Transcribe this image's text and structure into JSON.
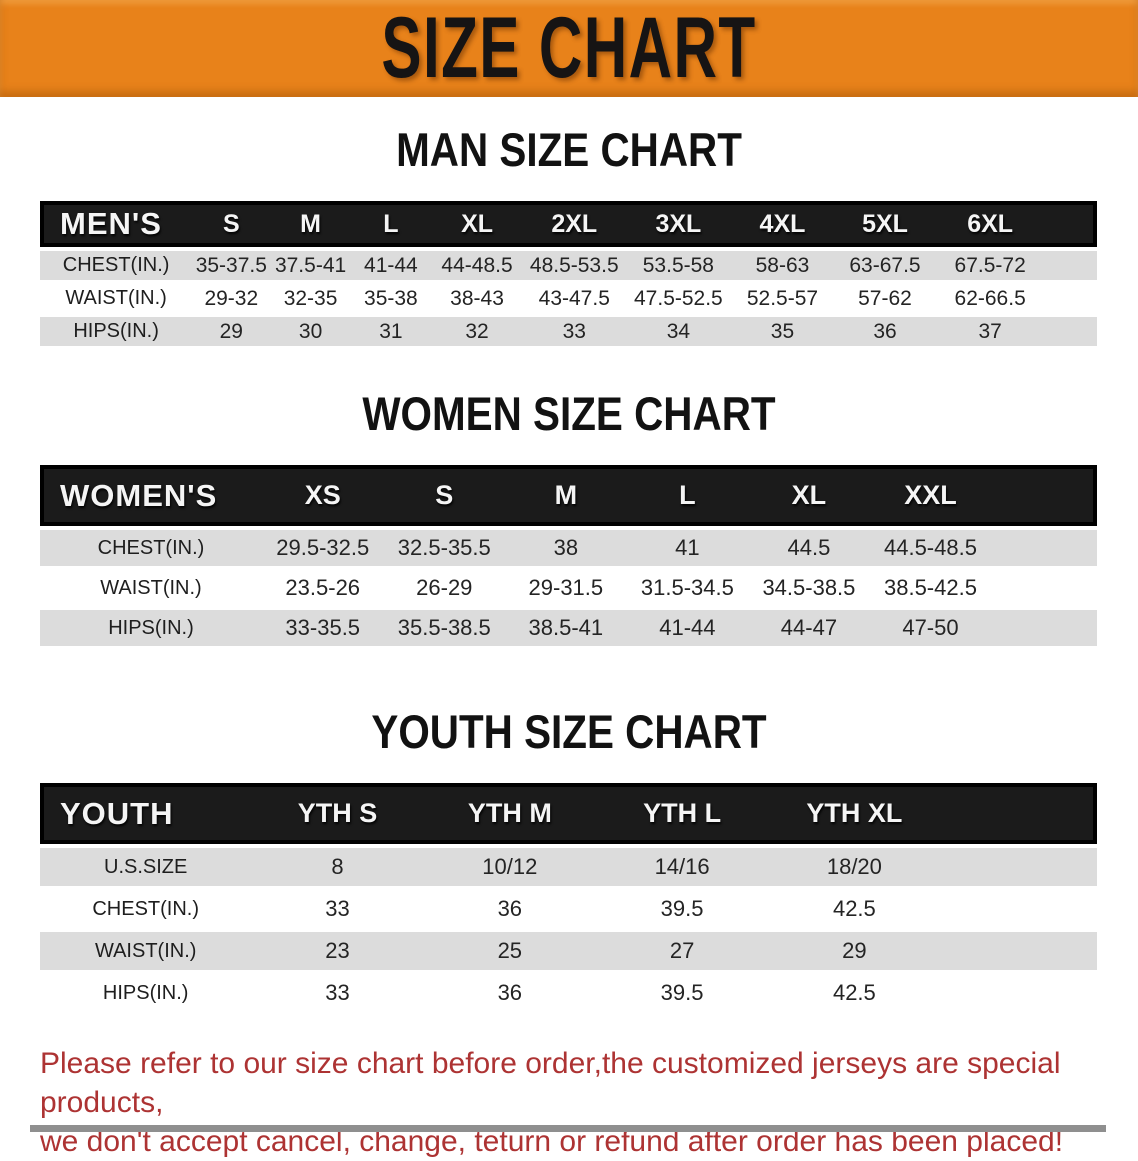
{
  "banner": {
    "title": "SIZE CHART",
    "bg_color": "#E8821A"
  },
  "colors": {
    "banner_bg": "#E8821A",
    "header_bar": "#1B1B1B",
    "row_stripe": "#DCDCDC",
    "disclaimer_text": "#AD3333"
  },
  "sections": [
    {
      "heading": "MAN SIZE CHART",
      "table": {
        "header": [
          "MEN'S",
          "S",
          "M",
          "L",
          "XL",
          "2XL",
          "3XL",
          "4XL",
          "5XL",
          "6XL"
        ],
        "rows": [
          {
            "label": "CHEST(IN.)",
            "values": [
              "35-37.5",
              "37.5-41",
              "41-44",
              "44-48.5",
              "48.5-53.5",
              "53.5-58",
              "58-63",
              "63-67.5",
              "67.5-72"
            ]
          },
          {
            "label": "WAIST(IN.)",
            "values": [
              "29-32",
              "32-35",
              "35-38",
              "38-43",
              "43-47.5",
              "47.5-52.5",
              "52.5-57",
              "57-62",
              "62-66.5"
            ]
          },
          {
            "label": "HIPS(IN.)",
            "values": [
              "29",
              "30",
              "31",
              "32",
              "33",
              "34",
              "35",
              "36",
              "37"
            ]
          }
        ]
      }
    },
    {
      "heading": "WOMEN SIZE CHART",
      "table": {
        "header": [
          "WOMEN'S",
          "XS",
          "S",
          "M",
          "L",
          "XL",
          "XXL"
        ],
        "rows": [
          {
            "label": "CHEST(IN.)",
            "values": [
              "29.5-32.5",
              "32.5-35.5",
              "38",
              "41",
              "44.5",
              "44.5-48.5"
            ]
          },
          {
            "label": "WAIST(IN.)",
            "values": [
              "23.5-26",
              "26-29",
              "29-31.5",
              "31.5-34.5",
              "34.5-38.5",
              "38.5-42.5"
            ]
          },
          {
            "label": "HIPS(IN.)",
            "values": [
              "33-35.5",
              "35.5-38.5",
              "38.5-41",
              "41-44",
              "44-47",
              "47-50"
            ]
          }
        ]
      }
    },
    {
      "heading": "YOUTH SIZE CHART",
      "table": {
        "header": [
          "YOUTH",
          "YTH S",
          "YTH M",
          "YTH L",
          "YTH XL"
        ],
        "rows": [
          {
            "label": "U.S.SIZE",
            "values": [
              "8",
              "10/12",
              "14/16",
              "18/20"
            ]
          },
          {
            "label": "CHEST(IN.)",
            "values": [
              "33",
              "36",
              "39.5",
              "42.5"
            ]
          },
          {
            "label": "WAIST(IN.)",
            "values": [
              "23",
              "25",
              "27",
              "29"
            ]
          },
          {
            "label": "HIPS(IN.)",
            "values": [
              "33",
              "36",
              "39.5",
              "42.5"
            ]
          }
        ]
      }
    }
  ],
  "disclaimer": {
    "line1": "Please refer to our size chart before order,the customized jerseys are special products,",
    "line2": "we don't accept cancel, change, teturn or refund after order has been placed!"
  }
}
